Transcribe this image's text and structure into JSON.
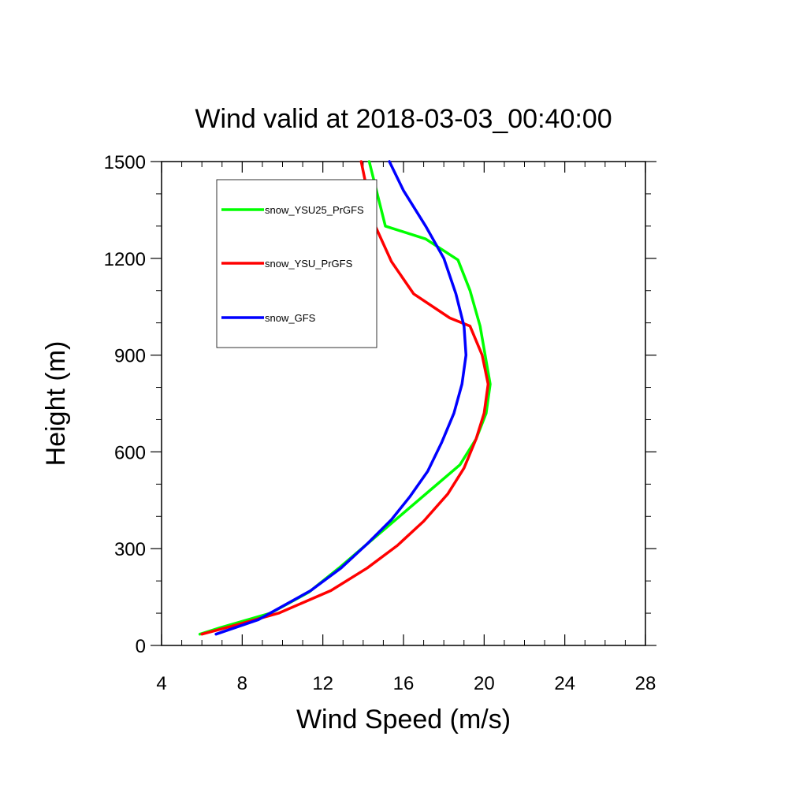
{
  "chart_data": {
    "type": "line",
    "title": "Wind valid at 2018-03-03_00:40:00",
    "xlabel": "Wind Speed (m/s)",
    "ylabel": "Height (m)",
    "xlim": [
      4,
      28
    ],
    "ylim": [
      0,
      1500
    ],
    "x_ticks": [
      4,
      8,
      12,
      16,
      20,
      24,
      28
    ],
    "y_ticks": [
      0,
      300,
      600,
      900,
      1200,
      1500
    ],
    "x_tick_labels": [
      "4",
      "8",
      "12",
      "16",
      "20",
      "24",
      "28"
    ],
    "y_tick_labels": [
      "0",
      "300",
      "600",
      "900",
      "1200",
      "1500"
    ],
    "grid": false,
    "legend_position": "top-left",
    "series": [
      {
        "name": "snow_YSU25_PrGFS",
        "color": "#00ff00",
        "points": [
          [
            5.9,
            35
          ],
          [
            6.9,
            55
          ],
          [
            9.4,
            100
          ],
          [
            11.3,
            165
          ],
          [
            12.8,
            240
          ],
          [
            14.3,
            320
          ],
          [
            15.8,
            400
          ],
          [
            17.3,
            480
          ],
          [
            18.8,
            560
          ],
          [
            19.6,
            640
          ],
          [
            20.1,
            720
          ],
          [
            20.3,
            810
          ],
          [
            19.8,
            990
          ],
          [
            19.3,
            1100
          ],
          [
            18.7,
            1195
          ],
          [
            17.1,
            1260
          ],
          [
            15.1,
            1300
          ],
          [
            14.7,
            1400
          ],
          [
            14.3,
            1500
          ]
        ]
      },
      {
        "name": "snow_YSU_PrGFS",
        "color": "#ff0000",
        "points": [
          [
            6.0,
            35
          ],
          [
            7.5,
            60
          ],
          [
            9.8,
            100
          ],
          [
            12.4,
            170
          ],
          [
            14.2,
            240
          ],
          [
            15.7,
            310
          ],
          [
            17.0,
            385
          ],
          [
            18.2,
            470
          ],
          [
            19.0,
            550
          ],
          [
            19.6,
            640
          ],
          [
            20.0,
            720
          ],
          [
            20.2,
            810
          ],
          [
            19.9,
            900
          ],
          [
            19.3,
            990
          ],
          [
            18.3,
            1015
          ],
          [
            16.5,
            1090
          ],
          [
            15.4,
            1190
          ],
          [
            14.6,
            1300
          ],
          [
            14.2,
            1410
          ],
          [
            13.9,
            1500
          ]
        ]
      },
      {
        "name": "snow_GFS",
        "color": "#0000ff",
        "points": [
          [
            6.7,
            35
          ],
          [
            8.8,
            80
          ],
          [
            11.4,
            170
          ],
          [
            12.9,
            240
          ],
          [
            14.2,
            315
          ],
          [
            15.4,
            390
          ],
          [
            16.3,
            460
          ],
          [
            17.2,
            540
          ],
          [
            17.9,
            630
          ],
          [
            18.5,
            720
          ],
          [
            18.9,
            810
          ],
          [
            19.1,
            900
          ],
          [
            19.0,
            990
          ],
          [
            18.6,
            1090
          ],
          [
            18.0,
            1200
          ],
          [
            17.1,
            1300
          ],
          [
            16.0,
            1410
          ],
          [
            15.3,
            1500
          ]
        ]
      }
    ]
  }
}
